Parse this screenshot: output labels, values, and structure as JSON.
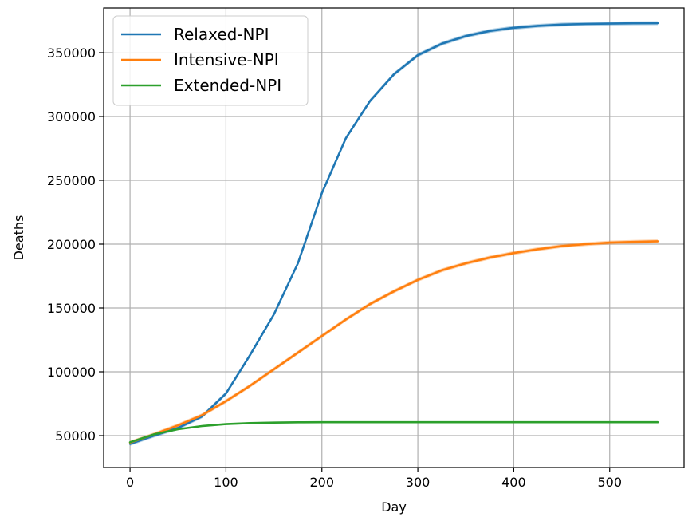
{
  "chart_data": {
    "type": "line",
    "title": "",
    "xlabel": "Day",
    "ylabel": "Deaths",
    "xlim": [
      -27.5,
      577.5
    ],
    "ylim": [
      25000,
      385000
    ],
    "xticks": [
      0,
      100,
      200,
      300,
      400,
      500
    ],
    "yticks": [
      50000,
      100000,
      150000,
      200000,
      250000,
      300000,
      350000
    ],
    "grid": true,
    "legend_position": "top-left",
    "x": [
      0,
      25,
      50,
      75,
      100,
      125,
      150,
      175,
      200,
      225,
      250,
      275,
      300,
      325,
      350,
      375,
      400,
      425,
      450,
      475,
      500,
      525,
      550
    ],
    "series": [
      {
        "name": "Relaxed-NPI",
        "color": "#1f77b4",
        "band_width": 1500,
        "values": [
          43500,
          50000,
          56000,
          65000,
          83000,
          113000,
          145000,
          185000,
          240000,
          283000,
          312000,
          333000,
          348000,
          357000,
          363000,
          367000,
          369500,
          371000,
          372000,
          372500,
          372800,
          373000,
          373100
        ]
      },
      {
        "name": "Intensive-NPI",
        "color": "#ff7f0e",
        "band_width": 1500,
        "values": [
          44500,
          51000,
          58000,
          66000,
          77000,
          89000,
          102000,
          115000,
          128000,
          141000,
          153000,
          163000,
          172000,
          179500,
          185000,
          189500,
          193000,
          196000,
          198500,
          200000,
          201200,
          201800,
          202200
        ]
      },
      {
        "name": "Extended-NPI",
        "color": "#2ca02c",
        "band_width": 700,
        "values": [
          44800,
          51000,
          55000,
          57500,
          59000,
          59800,
          60200,
          60400,
          60500,
          60500,
          60500,
          60500,
          60500,
          60500,
          60500,
          60500,
          60500,
          60500,
          60500,
          60500,
          60500,
          60500,
          60500
        ]
      }
    ]
  }
}
